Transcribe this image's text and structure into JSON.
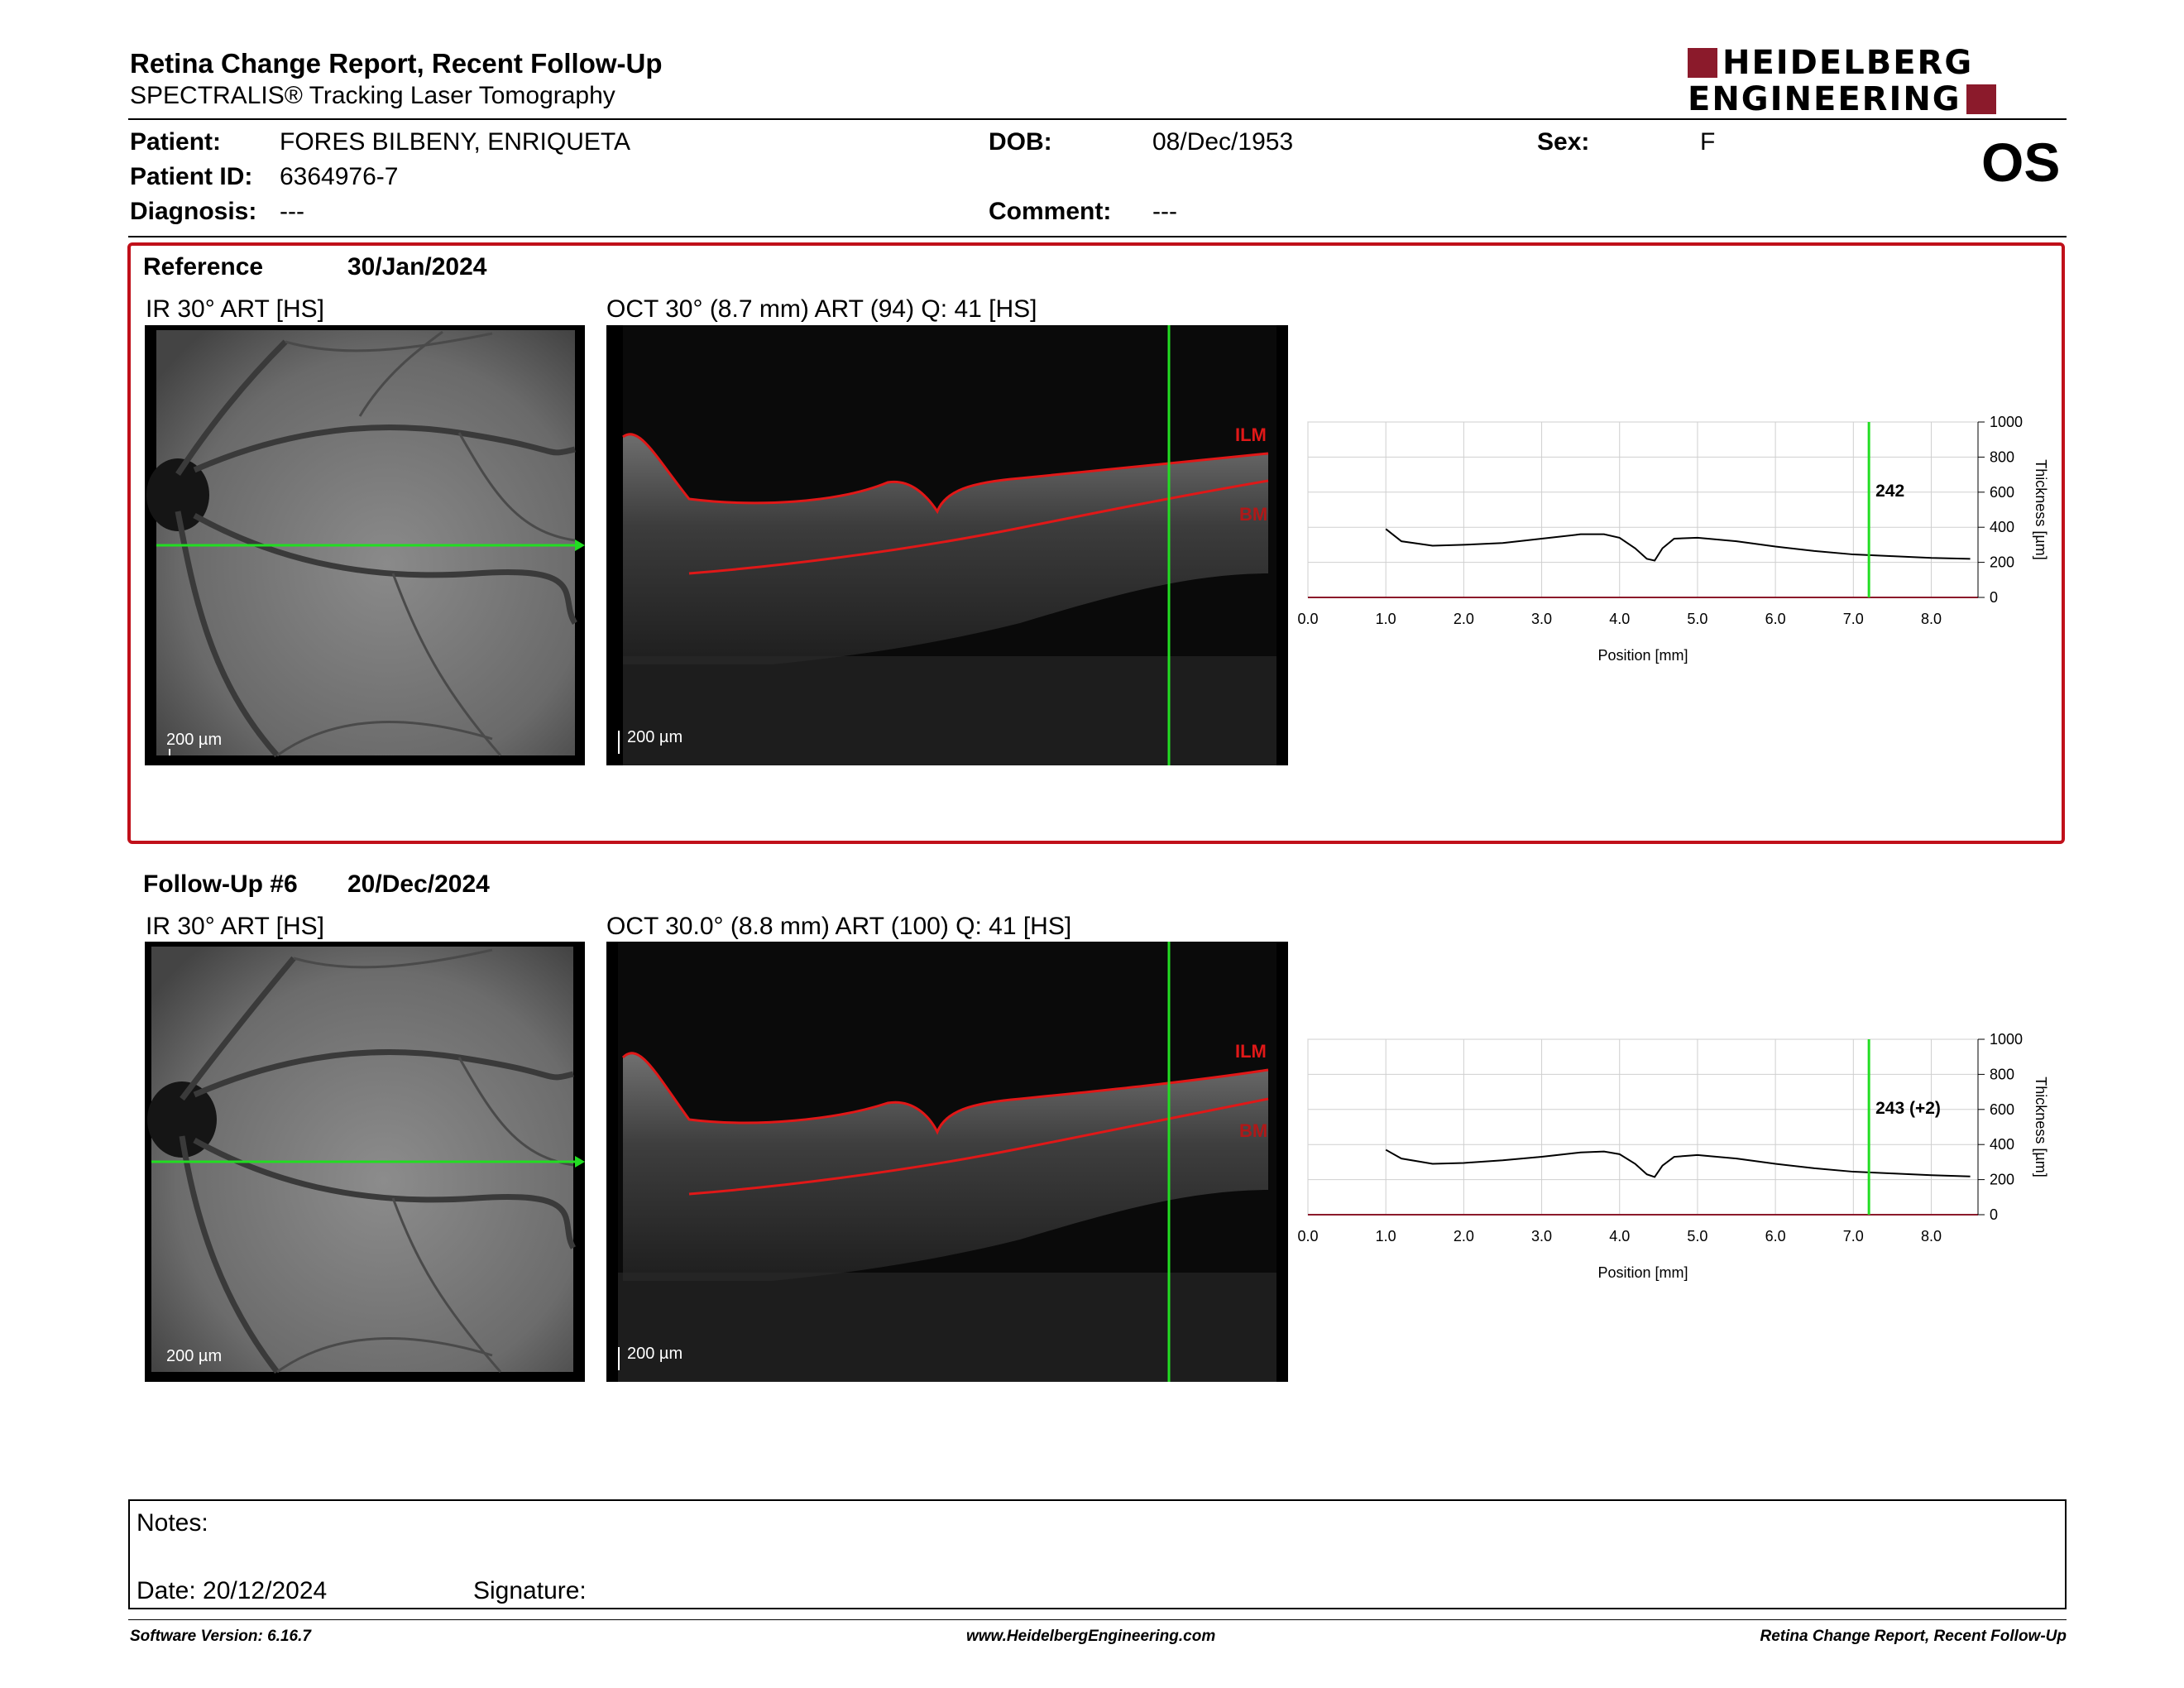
{
  "header": {
    "title": "Retina Change Report, Recent Follow-Up",
    "subtitle": "SPECTRALIS® Tracking Laser Tomography",
    "logo_line1": "HEIDELBERG",
    "logo_line2": "ENGINEERING",
    "eye": "OS"
  },
  "patient": {
    "name_label": "Patient:",
    "name": "FORES BILBENY, ENRIQUETA",
    "id_label": "Patient ID:",
    "id": "6364976-7",
    "diagnosis_label": "Diagnosis:",
    "diagnosis": "---",
    "dob_label": "DOB:",
    "dob": "08/Dec/1953",
    "comment_label": "Comment:",
    "comment": "---",
    "sex_label": "Sex:",
    "sex": "F"
  },
  "reference": {
    "label": "Reference",
    "date": "30/Jan/2024",
    "ir_label": "IR 30° ART [HS]",
    "oct_label": "OCT 30° (8.7 mm) ART (94) Q: 41 [HS]",
    "ir_scale": "200 µm",
    "oct_scale": "200 µm",
    "ilm": "ILM",
    "bm": "BM"
  },
  "followup": {
    "label": "Follow-Up #6",
    "date": "20/Dec/2024",
    "ir_label": "IR 30° ART [HS]",
    "oct_label": "OCT 30.0° (8.8 mm) ART (100) Q: 41 [HS]",
    "ir_scale": "200 µm",
    "oct_scale": "200 µm",
    "ilm": "ILM",
    "bm": "BM"
  },
  "chart_data": [
    {
      "type": "line",
      "xlabel": "Position [mm]",
      "ylabel": "Thickness [µm]",
      "xlim": [
        0,
        8.6
      ],
      "ylim": [
        0,
        1000
      ],
      "xticks": [
        "0.0",
        "1.0",
        "2.0",
        "3.0",
        "4.0",
        "5.0",
        "6.0",
        "7.0",
        "8.0"
      ],
      "yticks": [
        "0",
        "200",
        "400",
        "600",
        "800",
        "1000"
      ],
      "cursor_x": 7.2,
      "cursor_label": "242",
      "x": [
        1.0,
        1.2,
        1.6,
        2.0,
        2.5,
        3.0,
        3.5,
        3.8,
        4.0,
        4.2,
        4.35,
        4.45,
        4.55,
        4.7,
        5.0,
        5.5,
        6.0,
        6.5,
        7.0,
        7.5,
        8.0,
        8.5
      ],
      "y": [
        390,
        320,
        295,
        300,
        310,
        335,
        360,
        360,
        340,
        280,
        220,
        210,
        280,
        335,
        340,
        320,
        290,
        265,
        245,
        235,
        225,
        220
      ]
    },
    {
      "type": "line",
      "xlabel": "Position [mm]",
      "ylabel": "Thickness [µm]",
      "xlim": [
        0,
        8.6
      ],
      "ylim": [
        0,
        1000
      ],
      "xticks": [
        "0.0",
        "1.0",
        "2.0",
        "3.0",
        "4.0",
        "5.0",
        "6.0",
        "7.0",
        "8.0"
      ],
      "yticks": [
        "0",
        "200",
        "400",
        "600",
        "800",
        "1000"
      ],
      "cursor_x": 7.2,
      "cursor_label": "243 (+2)",
      "x": [
        1.0,
        1.2,
        1.6,
        2.0,
        2.5,
        3.0,
        3.5,
        3.8,
        4.0,
        4.2,
        4.35,
        4.45,
        4.55,
        4.7,
        5.0,
        5.5,
        6.0,
        6.5,
        7.0,
        7.5,
        8.0,
        8.5
      ],
      "y": [
        370,
        320,
        290,
        295,
        310,
        330,
        355,
        360,
        345,
        290,
        230,
        215,
        280,
        330,
        340,
        320,
        290,
        265,
        245,
        235,
        225,
        218
      ]
    }
  ],
  "notes": {
    "notes_label": "Notes:",
    "date_label": "Date: 20/12/2024",
    "signature_label": "Signature:"
  },
  "footer": {
    "software": "Software Version: 6.16.7",
    "website": "www.HeidelbergEngineering.com",
    "report": "Retina Change Report, Recent Follow-Up"
  },
  "colors": {
    "accent": "#c0101a",
    "logo": "#8b1a2b",
    "cursor": "#22dd22",
    "scanline": "#22dd22"
  }
}
